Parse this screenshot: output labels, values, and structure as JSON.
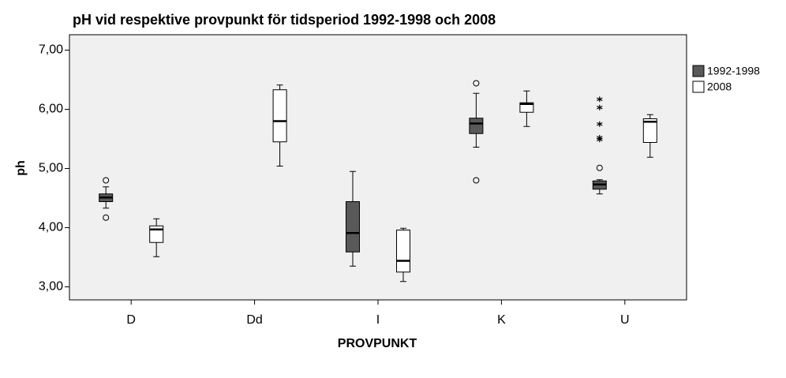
{
  "chart_data": {
    "type": "boxplot",
    "title": "pH vid respektive provpunkt för tidsperiod 1992-1998 och 2008",
    "x_label": "PROVPUNKT",
    "y_label": "ph",
    "categories": [
      "D",
      "Dd",
      "I",
      "K",
      "U"
    ],
    "ylim": [
      2.78,
      7.26
    ],
    "yticks": [
      {
        "value": 3,
        "label": "3,00"
      },
      {
        "value": 4,
        "label": "4,00"
      },
      {
        "value": 5,
        "label": "5,00"
      },
      {
        "value": 6,
        "label": "6,00"
      },
      {
        "value": 7,
        "label": "7,00"
      }
    ],
    "legend": "right",
    "series": [
      {
        "name": "1992-1998",
        "color": "#595959",
        "whisker_low": [
          4.33,
          null,
          3.35,
          5.36,
          4.57
        ],
        "q1": [
          4.44,
          null,
          3.59,
          5.59,
          4.65
        ],
        "median": [
          4.51,
          null,
          3.91,
          5.76,
          4.73
        ],
        "q3": [
          4.57,
          null,
          4.44,
          5.85,
          4.79
        ],
        "whisker_high": [
          4.69,
          null,
          4.95,
          6.27,
          4.81
        ],
        "outliers": [
          [
            4.8,
            4.17
          ],
          [],
          [],
          [
            6.44,
            4.8
          ],
          [
            5.01
          ]
        ],
        "extremes": [
          [],
          [],
          [],
          [],
          [
            6.17,
            6.03,
            5.75,
            5.52,
            5.49
          ]
        ]
      },
      {
        "name": "2008",
        "color": "#ffffff",
        "whisker_low": [
          3.51,
          5.04,
          3.09,
          5.71,
          5.19
        ],
        "q1": [
          3.75,
          5.45,
          3.25,
          5.95,
          5.44
        ],
        "median": [
          3.97,
          5.8,
          3.44,
          6.09,
          5.79
        ],
        "q3": [
          4.03,
          6.33,
          3.96,
          6.11,
          5.84
        ],
        "whisker_high": [
          4.15,
          6.41,
          3.99,
          6.31,
          5.91
        ],
        "outliers": [
          [],
          [],
          [],
          [],
          []
        ],
        "extremes": [
          [],
          [],
          [],
          [],
          []
        ]
      }
    ]
  }
}
